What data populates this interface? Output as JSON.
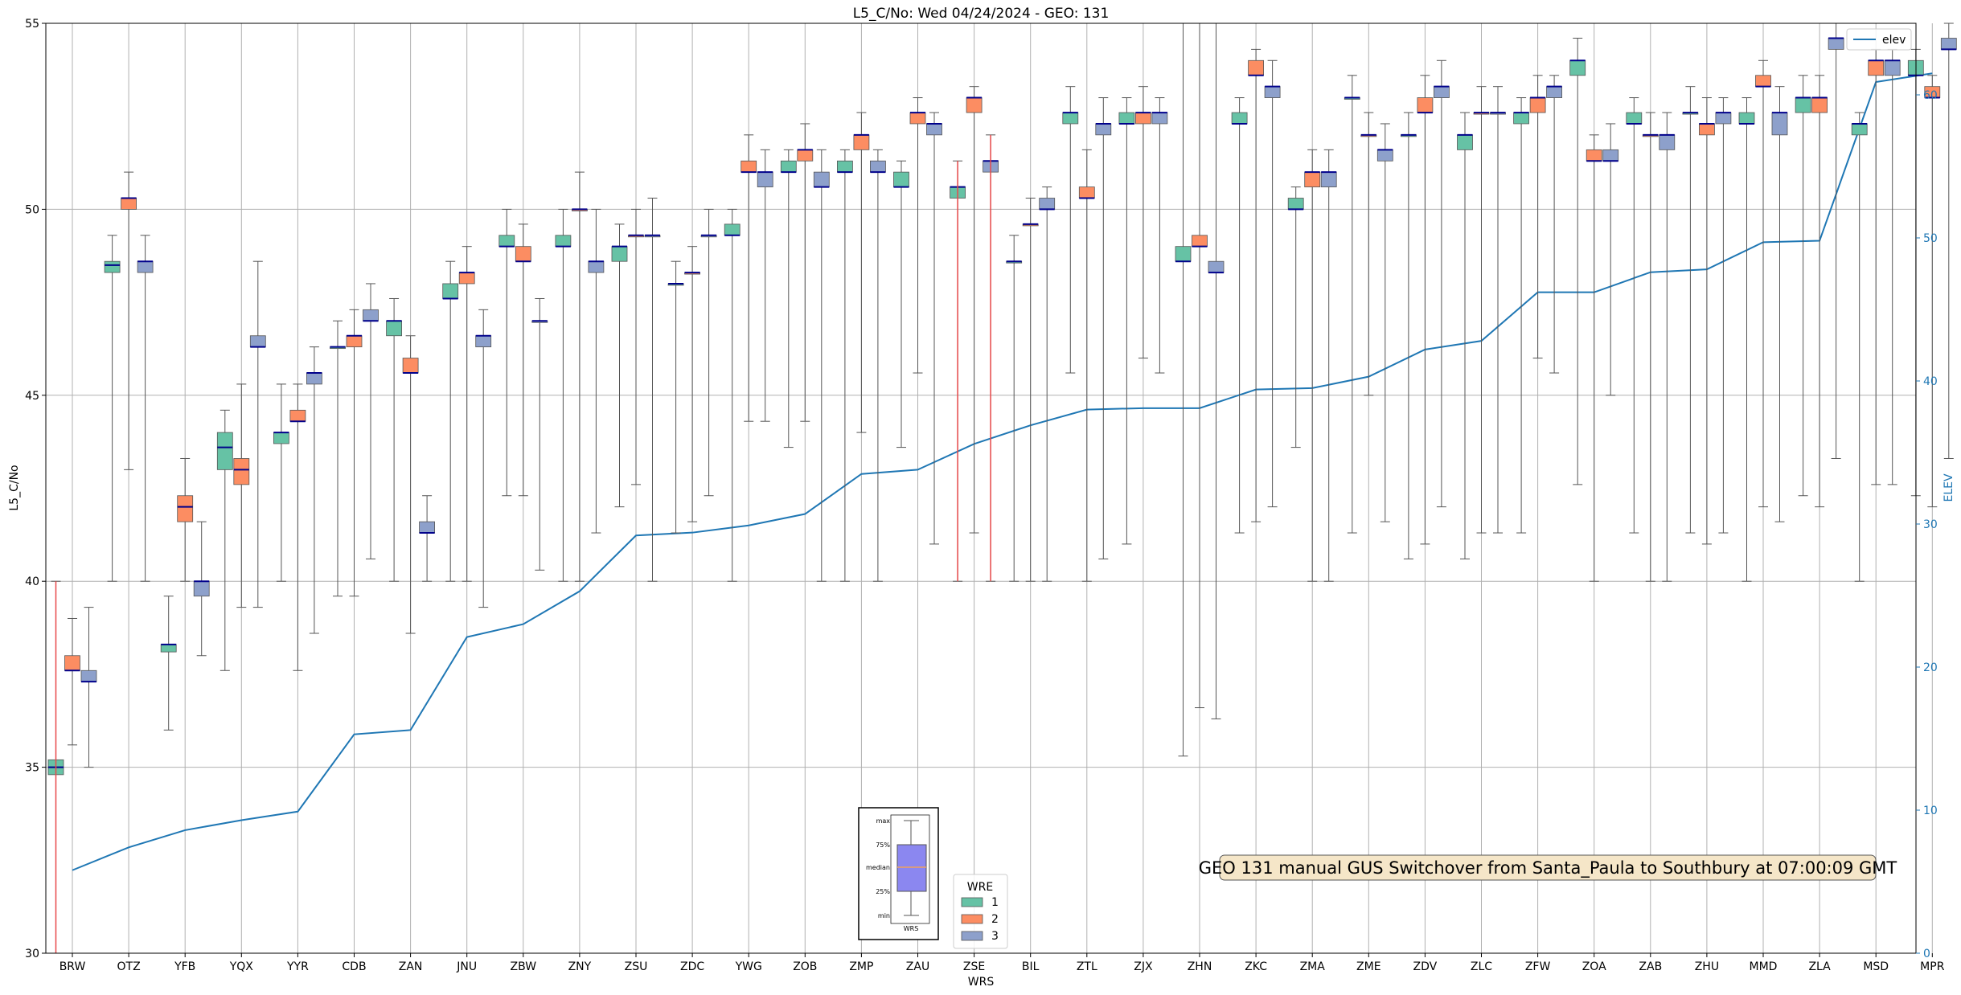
{
  "chart_data": {
    "type": "box",
    "title": "L5_C/No: Wed 04/24/2024 - GEO: 131",
    "xlabel": "WRS",
    "ylabel": "L5_C/No",
    "y2label": "ELEV",
    "ylim": [
      30,
      55
    ],
    "y2lim": [
      0,
      65
    ],
    "yticks": [
      30,
      35,
      40,
      45,
      50,
      55
    ],
    "y2ticks": [
      0,
      10,
      20,
      30,
      40,
      50,
      60
    ],
    "grid": true,
    "categories": [
      "BRW",
      "OTZ",
      "YFB",
      "YQX",
      "YYR",
      "CDB",
      "ZAN",
      "JNU",
      "ZBW",
      "ZNY",
      "ZSU",
      "ZDC",
      "YWG",
      "ZOB",
      "ZMP",
      "ZAU",
      "ZSE",
      "BIL",
      "ZTL",
      "ZJX",
      "ZHN",
      "ZKC",
      "ZMA",
      "ZME",
      "ZDV",
      "ZLC",
      "ZFW",
      "ZOA",
      "ZAB",
      "ZHU",
      "MMD",
      "ZLA",
      "MSD",
      "MPR"
    ],
    "colors": {
      "wre1": "#66c2a5",
      "wre2": "#fc8d62",
      "wre3": "#8da0cb",
      "median": "#00008b",
      "whisker": "#555555",
      "elev": "#1f77b4",
      "highlight": "#e8494a"
    },
    "series": [
      {
        "name": "1",
        "boxes": [
          [
            35,
            34.8,
            35,
            35.2,
            40
          ],
          [
            40,
            48.3,
            48.5,
            48.6,
            49.3
          ],
          [
            36,
            38.1,
            38.3,
            38.3,
            39.6
          ],
          [
            37.6,
            43.0,
            43.6,
            44.0,
            44.6
          ],
          [
            40,
            43.7,
            44.0,
            44.0,
            45.3
          ],
          [
            39.6,
            46.3,
            46.3,
            46.3,
            47.0
          ],
          [
            40,
            46.6,
            47.0,
            47.0,
            47.6
          ],
          [
            40,
            47.6,
            47.6,
            48.0,
            48.6
          ],
          [
            42.3,
            49.0,
            49.0,
            49.3,
            50.0
          ],
          [
            40,
            49.0,
            49.0,
            49.3,
            50.0
          ],
          [
            42.0,
            48.6,
            49.0,
            49.0,
            49.6
          ],
          [
            41.3,
            48.0,
            48.0,
            48.0,
            48.6
          ],
          [
            40,
            49.3,
            49.3,
            49.6,
            50.0
          ],
          [
            43.6,
            51.0,
            51.0,
            51.3,
            51.6
          ],
          [
            40,
            51.0,
            51.0,
            51.3,
            51.6
          ],
          [
            43.6,
            50.6,
            50.6,
            51.0,
            51.3
          ],
          [
            40,
            50.3,
            50.6,
            50.6,
            51.3
          ],
          [
            40,
            48.6,
            48.6,
            48.6,
            49.3
          ],
          [
            45.6,
            52.3,
            52.6,
            52.6,
            53.3
          ],
          [
            41.0,
            52.3,
            52.3,
            52.6,
            53.0
          ],
          [
            35.3,
            48.6,
            48.6,
            49.0,
            55
          ],
          [
            41.3,
            52.3,
            52.3,
            52.6,
            53.0
          ],
          [
            43.6,
            50.0,
            50.0,
            50.3,
            50.6
          ],
          [
            41.3,
            53.0,
            53.0,
            53.0,
            53.6
          ],
          [
            40.6,
            52.0,
            52.0,
            52.0,
            52.6
          ],
          [
            40.6,
            51.6,
            52.0,
            52.0,
            52.6
          ],
          [
            41.3,
            52.3,
            52.6,
            52.6,
            53.0
          ],
          [
            42.6,
            53.6,
            54.0,
            54.0,
            54.6
          ],
          [
            41.3,
            52.3,
            52.3,
            52.6,
            53.0
          ],
          [
            41.3,
            52.6,
            52.6,
            52.6,
            53.3
          ],
          [
            40,
            52.3,
            52.3,
            52.6,
            53.0
          ],
          [
            42.3,
            52.6,
            53.0,
            53.0,
            53.6
          ],
          [
            40,
            52.0,
            52.3,
            52.3,
            52.6
          ],
          [
            42.3,
            53.6,
            53.6,
            54.0,
            54.3
          ]
        ]
      },
      {
        "name": "2",
        "boxes": [
          [
            35.6,
            37.6,
            37.6,
            38.0,
            39.0
          ],
          [
            43.0,
            50.0,
            50.3,
            50.3,
            51.0
          ],
          [
            40,
            41.6,
            42.0,
            42.3,
            43.3
          ],
          [
            39.3,
            42.6,
            43.0,
            43.3,
            45.3
          ],
          [
            37.6,
            44.3,
            44.3,
            44.6,
            45.3
          ],
          [
            39.6,
            46.3,
            46.6,
            46.6,
            47.3
          ],
          [
            38.6,
            45.6,
            45.6,
            46.0,
            46.6
          ],
          [
            40,
            48.0,
            48.3,
            48.3,
            49.0
          ],
          [
            42.3,
            48.6,
            48.6,
            49.0,
            49.6
          ],
          [
            40,
            50.0,
            50.0,
            50.0,
            51.0
          ],
          [
            42.6,
            49.3,
            49.3,
            49.3,
            50.0
          ],
          [
            41.6,
            48.3,
            48.3,
            48.3,
            49.0
          ],
          [
            44.3,
            51.0,
            51.0,
            51.3,
            52.0
          ],
          [
            44.3,
            51.3,
            51.6,
            51.6,
            52.3
          ],
          [
            44.0,
            51.6,
            52.0,
            52.0,
            52.6
          ],
          [
            45.6,
            52.3,
            52.6,
            52.6,
            53.0
          ],
          [
            41.3,
            52.6,
            53.0,
            53.0,
            53.3
          ],
          [
            40,
            49.6,
            49.6,
            49.6,
            50.3
          ],
          [
            40,
            50.3,
            50.3,
            50.6,
            51.6
          ],
          [
            46.0,
            52.3,
            52.6,
            52.6,
            53.3
          ],
          [
            36.6,
            49.0,
            49.0,
            49.3,
            55
          ],
          [
            41.6,
            53.6,
            53.6,
            54.0,
            54.3
          ],
          [
            40,
            50.6,
            51.0,
            51.0,
            51.6
          ],
          [
            45.0,
            52.0,
            52.0,
            52.0,
            52.6
          ],
          [
            41.0,
            52.6,
            52.6,
            53.0,
            53.6
          ],
          [
            41.3,
            52.6,
            52.6,
            52.6,
            53.3
          ],
          [
            46.0,
            52.6,
            53.0,
            53.0,
            53.6
          ],
          [
            40,
            51.3,
            51.3,
            51.6,
            52.0
          ],
          [
            40,
            52.0,
            52.0,
            52.0,
            52.6
          ],
          [
            41.0,
            52.0,
            52.3,
            52.3,
            53.0
          ],
          [
            42.0,
            53.3,
            53.3,
            53.6,
            54.0
          ],
          [
            42.0,
            52.6,
            53.0,
            53.0,
            53.6
          ],
          [
            42.6,
            53.6,
            54.0,
            54.0,
            54.3
          ],
          [
            42.0,
            53.0,
            53.0,
            53.3,
            53.6
          ]
        ]
      },
      {
        "name": "3",
        "boxes": [
          [
            35,
            37.3,
            37.3,
            37.6,
            39.3
          ],
          [
            40,
            48.3,
            48.6,
            48.6,
            49.3
          ],
          [
            38.0,
            39.6,
            40.0,
            40.0,
            41.6
          ],
          [
            39.3,
            46.3,
            46.3,
            46.6,
            48.6
          ],
          [
            38.6,
            45.3,
            45.6,
            45.6,
            46.3
          ],
          [
            40.6,
            47.0,
            47.0,
            47.3,
            48.0
          ],
          [
            40,
            41.3,
            41.3,
            41.6,
            42.3
          ],
          [
            39.3,
            46.3,
            46.6,
            46.6,
            47.3
          ],
          [
            40.3,
            47.0,
            47.0,
            47.0,
            47.6
          ],
          [
            41.3,
            48.3,
            48.6,
            48.6,
            50.0
          ],
          [
            40,
            49.3,
            49.3,
            49.3,
            50.3
          ],
          [
            42.3,
            49.3,
            49.3,
            49.3,
            50.0
          ],
          [
            44.3,
            50.6,
            51.0,
            51.0,
            51.6
          ],
          [
            40,
            50.6,
            50.6,
            51.0,
            51.6
          ],
          [
            40,
            51.0,
            51.0,
            51.3,
            51.6
          ],
          [
            41.0,
            52.0,
            52.3,
            52.3,
            52.6
          ],
          [
            40,
            51.0,
            51.3,
            51.3,
            52.0
          ],
          [
            40,
            50.0,
            50.0,
            50.3,
            50.6
          ],
          [
            40.6,
            52.0,
            52.3,
            52.3,
            53.0
          ],
          [
            45.6,
            52.3,
            52.6,
            52.6,
            53.0
          ],
          [
            36.3,
            48.3,
            48.3,
            48.6,
            55
          ],
          [
            42.0,
            53.0,
            53.3,
            53.3,
            54.0
          ],
          [
            40,
            50.6,
            51.0,
            51.0,
            51.6
          ],
          [
            41.6,
            51.3,
            51.6,
            51.6,
            52.3
          ],
          [
            42.0,
            53.0,
            53.3,
            53.3,
            54.0
          ],
          [
            41.3,
            52.6,
            52.6,
            52.6,
            53.3
          ],
          [
            45.6,
            53.0,
            53.3,
            53.3,
            53.6
          ],
          [
            45.0,
            51.3,
            51.3,
            51.6,
            52.3
          ],
          [
            40,
            51.6,
            52.0,
            52.0,
            52.6
          ],
          [
            41.3,
            52.3,
            52.6,
            52.6,
            53.0
          ],
          [
            41.6,
            52.0,
            52.6,
            52.6,
            53.3
          ],
          [
            43.3,
            54.3,
            54.6,
            54.6,
            55
          ],
          [
            42.6,
            53.6,
            54.0,
            54.0,
            54.3
          ],
          [
            43.3,
            54.3,
            54.3,
            54.6,
            55
          ]
        ]
      }
    ],
    "highlight_segments": [
      {
        "category": "BRW",
        "y": [
          30,
          40
        ]
      },
      {
        "category": "ZSE",
        "y": [
          40,
          51.3
        ]
      },
      {
        "category": "ZSE",
        "y": [
          40,
          52.0
        ]
      }
    ],
    "elev": {
      "name": "elev",
      "values": [
        5.8,
        7.4,
        8.6,
        9.3,
        9.9,
        15.3,
        15.6,
        22.1,
        23.0,
        25.3,
        29.2,
        29.4,
        29.9,
        30.7,
        33.5,
        33.8,
        35.6,
        36.9,
        38.0,
        38.1,
        38.1,
        39.4,
        39.5,
        40.3,
        42.2,
        42.8,
        46.2,
        46.2,
        47.6,
        47.8,
        49.7,
        49.8,
        60.9,
        61.5
      ]
    },
    "legend": {
      "title": "WRE",
      "entries": [
        "1",
        "2",
        "3"
      ],
      "placement": "bottom-center"
    },
    "legend2": {
      "entries": [
        "elev"
      ],
      "placement": "top-right"
    },
    "box_key": {
      "labels": [
        "max",
        "75%",
        "median",
        "25%",
        "min"
      ],
      "xlabel": "WRS"
    },
    "annotation": "GEO 131 manual GUS Switchover from Santa_Paula to Southbury at 07:00:09 GMT"
  }
}
